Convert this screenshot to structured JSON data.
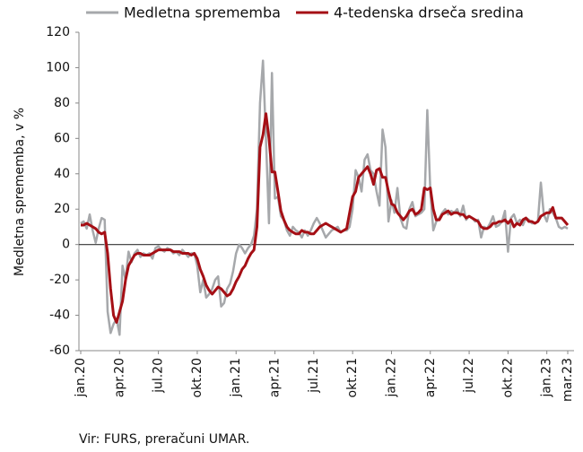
{
  "chart_data": {
    "type": "line",
    "ylabel": "Medletna sprememba, v %",
    "source": "Vir: FURS, preračuni UMAR.",
    "ylim": [
      -60,
      120
    ],
    "yticks": [
      -60,
      -40,
      -20,
      0,
      20,
      40,
      60,
      80,
      100,
      120
    ],
    "categories": [
      "jan.20",
      null,
      null,
      null,
      null,
      null,
      null,
      null,
      null,
      null,
      null,
      null,
      null,
      "apr.20",
      null,
      null,
      null,
      null,
      null,
      null,
      null,
      null,
      null,
      null,
      null,
      null,
      "jul.20",
      null,
      null,
      null,
      null,
      null,
      null,
      null,
      null,
      null,
      null,
      null,
      null,
      "okt.20",
      null,
      null,
      null,
      null,
      null,
      null,
      null,
      null,
      null,
      null,
      null,
      null,
      "jan.21",
      null,
      null,
      null,
      null,
      null,
      null,
      null,
      null,
      null,
      null,
      null,
      null,
      "apr.21",
      null,
      null,
      null,
      null,
      null,
      null,
      null,
      null,
      null,
      null,
      null,
      null,
      "jul.21",
      null,
      null,
      null,
      null,
      null,
      null,
      null,
      null,
      null,
      null,
      null,
      null,
      "okt.21",
      null,
      null,
      null,
      null,
      null,
      null,
      null,
      null,
      null,
      null,
      null,
      null,
      "jan.22",
      null,
      null,
      null,
      null,
      null,
      null,
      null,
      null,
      null,
      null,
      null,
      null,
      "apr.22",
      null,
      null,
      null,
      null,
      null,
      null,
      null,
      null,
      null,
      null,
      null,
      null,
      "jul.22",
      null,
      null,
      null,
      null,
      null,
      null,
      null,
      null,
      null,
      null,
      null,
      null,
      "okt.22",
      null,
      null,
      null,
      null,
      null,
      null,
      null,
      null,
      null,
      null,
      null,
      null,
      "jan.23",
      null,
      null,
      null,
      null,
      null,
      null,
      "mar.23"
    ],
    "series": [
      {
        "name": "Medletna sprememba",
        "color": "#a6a8ab",
        "width": 2.5,
        "values": [
          12,
          13,
          9,
          17,
          8,
          1,
          9,
          15,
          14,
          -38,
          -50,
          -45,
          -42,
          -51,
          -12,
          -20,
          -4,
          -10,
          -5,
          -3,
          -7,
          -5,
          -6,
          -5,
          -8,
          -2,
          -1,
          -3,
          -4,
          -2,
          -3,
          -5,
          -4,
          -6,
          -3,
          -5,
          -7,
          -5,
          -5,
          -12,
          -27,
          -20,
          -30,
          -28,
          -25,
          -20,
          -18,
          -35,
          -33,
          -25,
          -22,
          -15,
          -5,
          0,
          -2,
          -5,
          -2,
          0,
          5,
          20,
          80,
          104,
          60,
          12,
          97,
          26,
          27,
          16,
          14,
          8,
          5,
          10,
          8,
          7,
          4,
          8,
          5,
          8,
          12,
          15,
          12,
          8,
          4,
          6,
          8,
          9,
          10,
          7,
          8,
          8,
          10,
          20,
          42,
          38,
          30,
          48,
          51,
          42,
          40,
          30,
          22,
          65,
          55,
          13,
          25,
          18,
          32,
          15,
          10,
          9,
          20,
          24,
          16,
          17,
          18,
          20,
          76,
          30,
          8,
          13,
          15,
          18,
          20,
          17,
          19,
          18,
          20,
          16,
          22,
          14,
          16,
          15,
          13,
          14,
          4,
          10,
          9,
          12,
          16,
          10,
          11,
          13,
          19,
          -4,
          15,
          17,
          12,
          14,
          11,
          15,
          14,
          12,
          12,
          13,
          35,
          17,
          13,
          20,
          18,
          15,
          10,
          9,
          10,
          9
        ]
      },
      {
        "name": "4-tedenska drseča sredina",
        "color": "#a50f15",
        "width": 3,
        "values": [
          11,
          11,
          12,
          11,
          10,
          9,
          7,
          6,
          7,
          -5,
          -25,
          -40,
          -44,
          -38,
          -32,
          -20,
          -12,
          -9,
          -6,
          -5,
          -5,
          -6,
          -6,
          -6,
          -5,
          -4,
          -3,
          -3,
          -3,
          -3,
          -3,
          -4,
          -4,
          -4,
          -5,
          -5,
          -5,
          -6,
          -5,
          -8,
          -14,
          -18,
          -23,
          -26,
          -28,
          -26,
          -24,
          -25,
          -27,
          -29,
          -28,
          -25,
          -21,
          -18,
          -14,
          -12,
          -8,
          -5,
          -3,
          10,
          55,
          62,
          74,
          60,
          41,
          41,
          30,
          19,
          14,
          10,
          8,
          7,
          6,
          6,
          8,
          7,
          7,
          6,
          6,
          8,
          10,
          11,
          12,
          11,
          10,
          9,
          8,
          7,
          8,
          9,
          18,
          27,
          30,
          38,
          40,
          42,
          44,
          40,
          34,
          42,
          43,
          38,
          38,
          30,
          23,
          22,
          18,
          16,
          14,
          16,
          19,
          20,
          17,
          18,
          20,
          32,
          31,
          32,
          20,
          14,
          14,
          17,
          18,
          19,
          17,
          18,
          18,
          17,
          17,
          15,
          16,
          15,
          14,
          13,
          10,
          9,
          9,
          10,
          12,
          12,
          13,
          13,
          14,
          12,
          14,
          10,
          12,
          11,
          14,
          15,
          13,
          13,
          12,
          13,
          16,
          17,
          18,
          18,
          21,
          15,
          15,
          15,
          13,
          11
        ]
      }
    ]
  }
}
